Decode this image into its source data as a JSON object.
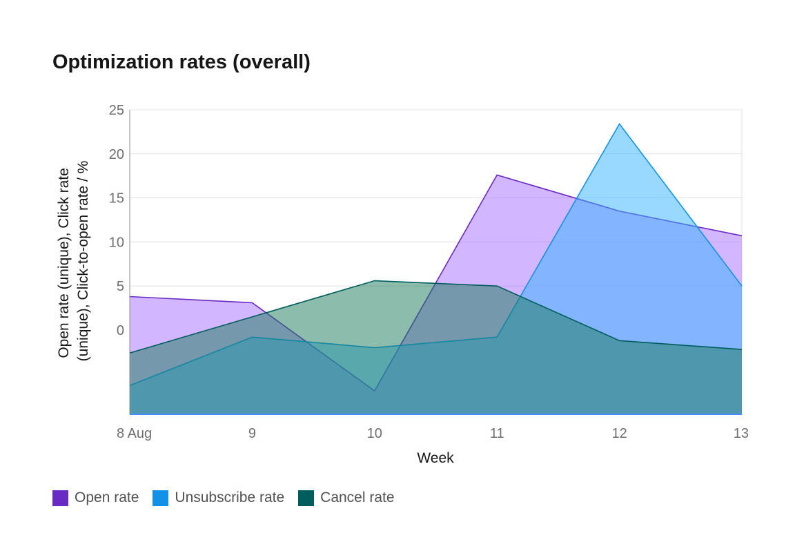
{
  "chart_data": {
    "type": "area",
    "title": "Optimization rates (overall)",
    "xlabel": "Week",
    "ylabel_lines": [
      "Open rate (unique), Click rate",
      "(unique), Click-to-open rate / %"
    ],
    "categories": [
      "8 Aug",
      "9",
      "10",
      "11",
      "12",
      "13"
    ],
    "ylim": [
      0,
      25
    ],
    "yticks": [
      0,
      5,
      10,
      15,
      20,
      25
    ],
    "grid": true,
    "legend_position": "bottom-left",
    "series": [
      {
        "name": "Open rate",
        "color": "#6929c4",
        "fill": "#a56eff",
        "values": [
          3.8,
          3.1,
          -6.9,
          17.6,
          13.5,
          10.7
        ]
      },
      {
        "name": "Unsubscribe rate",
        "color": "#1192e8",
        "fill": "#33b1ff",
        "values": [
          -6.3,
          -0.8,
          -2.0,
          -0.8,
          23.4,
          5.0
        ]
      },
      {
        "name": "Cancel rate",
        "color": "#005d5d",
        "fill": "#1a7a5a",
        "values": [
          -2.6,
          1.5,
          5.6,
          5.0,
          -1.2,
          -2.2
        ]
      }
    ],
    "legend": [
      {
        "name": "Open rate",
        "color": "#6929c4"
      },
      {
        "name": "Unsubscribe rate",
        "color": "#1192e8"
      },
      {
        "name": "Cancel rate",
        "color": "#005d5d"
      }
    ]
  }
}
